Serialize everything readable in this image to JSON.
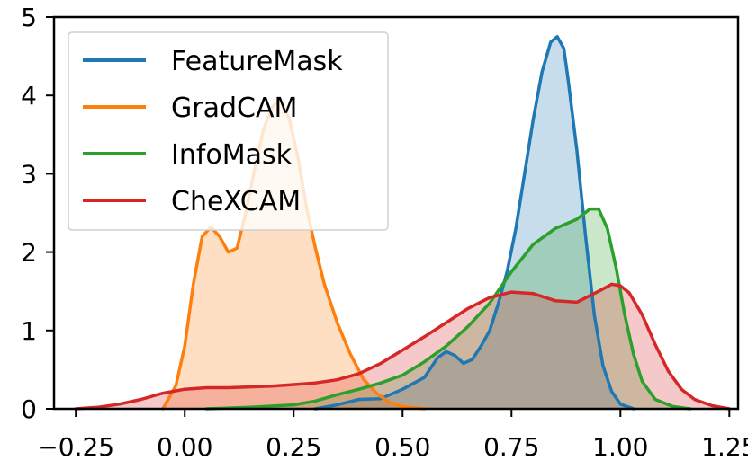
{
  "chart_data": {
    "type": "area",
    "title": "",
    "xlabel": "",
    "ylabel": "",
    "xlim": [
      -0.3,
      1.27
    ],
    "ylim": [
      0,
      5
    ],
    "xticks": [
      -0.25,
      0.0,
      0.25,
      0.5,
      0.75,
      1.0,
      1.25
    ],
    "xtick_labels": [
      "−0.25",
      "0.00",
      "0.25",
      "0.50",
      "0.75",
      "1.00",
      "1.25"
    ],
    "yticks": [
      0,
      1,
      2,
      3,
      4,
      5
    ],
    "ytick_labels": [
      "0",
      "1",
      "2",
      "3",
      "4",
      "5"
    ],
    "grid": false,
    "legend_position": "top-left",
    "series": [
      {
        "name": "FeatureMask",
        "color": "#1f77b4",
        "points": [
          [
            0.3,
            0.0
          ],
          [
            0.35,
            0.05
          ],
          [
            0.4,
            0.12
          ],
          [
            0.45,
            0.13
          ],
          [
            0.5,
            0.25
          ],
          [
            0.55,
            0.4
          ],
          [
            0.58,
            0.65
          ],
          [
            0.6,
            0.73
          ],
          [
            0.62,
            0.68
          ],
          [
            0.64,
            0.58
          ],
          [
            0.66,
            0.63
          ],
          [
            0.68,
            0.8
          ],
          [
            0.7,
            1.0
          ],
          [
            0.72,
            1.35
          ],
          [
            0.74,
            1.75
          ],
          [
            0.76,
            2.3
          ],
          [
            0.78,
            3.0
          ],
          [
            0.8,
            3.7
          ],
          [
            0.82,
            4.3
          ],
          [
            0.84,
            4.68
          ],
          [
            0.855,
            4.75
          ],
          [
            0.87,
            4.6
          ],
          [
            0.88,
            4.2
          ],
          [
            0.9,
            3.3
          ],
          [
            0.92,
            2.2
          ],
          [
            0.94,
            1.2
          ],
          [
            0.96,
            0.55
          ],
          [
            0.98,
            0.22
          ],
          [
            1.0,
            0.06
          ],
          [
            1.03,
            0.0
          ]
        ]
      },
      {
        "name": "GradCAM",
        "color": "#ff7f0e",
        "points": [
          [
            -0.05,
            0.0
          ],
          [
            -0.02,
            0.3
          ],
          [
            0.0,
            0.8
          ],
          [
            0.02,
            1.6
          ],
          [
            0.04,
            2.2
          ],
          [
            0.06,
            2.32
          ],
          [
            0.08,
            2.2
          ],
          [
            0.1,
            2.0
          ],
          [
            0.12,
            2.05
          ],
          [
            0.14,
            2.5
          ],
          [
            0.16,
            3.05
          ],
          [
            0.18,
            3.55
          ],
          [
            0.2,
            3.85
          ],
          [
            0.22,
            3.95
          ],
          [
            0.24,
            3.7
          ],
          [
            0.26,
            3.2
          ],
          [
            0.28,
            2.55
          ],
          [
            0.3,
            2.05
          ],
          [
            0.32,
            1.6
          ],
          [
            0.35,
            1.1
          ],
          [
            0.38,
            0.7
          ],
          [
            0.41,
            0.38
          ],
          [
            0.44,
            0.2
          ],
          [
            0.47,
            0.08
          ],
          [
            0.5,
            0.03
          ],
          [
            0.55,
            0.0
          ]
        ]
      },
      {
        "name": "InfoMask",
        "color": "#2ca02c",
        "points": [
          [
            0.05,
            0.0
          ],
          [
            0.15,
            0.02
          ],
          [
            0.25,
            0.05
          ],
          [
            0.3,
            0.1
          ],
          [
            0.35,
            0.18
          ],
          [
            0.4,
            0.25
          ],
          [
            0.45,
            0.33
          ],
          [
            0.5,
            0.43
          ],
          [
            0.55,
            0.6
          ],
          [
            0.6,
            0.8
          ],
          [
            0.65,
            1.05
          ],
          [
            0.7,
            1.35
          ],
          [
            0.75,
            1.75
          ],
          [
            0.8,
            2.1
          ],
          [
            0.85,
            2.3
          ],
          [
            0.9,
            2.42
          ],
          [
            0.93,
            2.55
          ],
          [
            0.95,
            2.55
          ],
          [
            0.97,
            2.3
          ],
          [
            0.99,
            1.8
          ],
          [
            1.01,
            1.2
          ],
          [
            1.03,
            0.7
          ],
          [
            1.05,
            0.35
          ],
          [
            1.08,
            0.12
          ],
          [
            1.12,
            0.03
          ],
          [
            1.16,
            0.0
          ]
        ]
      },
      {
        "name": "CheXCAM",
        "color": "#d62728",
        "points": [
          [
            -0.25,
            0.0
          ],
          [
            -0.2,
            0.02
          ],
          [
            -0.15,
            0.06
          ],
          [
            -0.1,
            0.12
          ],
          [
            -0.05,
            0.2
          ],
          [
            0.0,
            0.25
          ],
          [
            0.05,
            0.27
          ],
          [
            0.1,
            0.27
          ],
          [
            0.15,
            0.28
          ],
          [
            0.2,
            0.29
          ],
          [
            0.25,
            0.31
          ],
          [
            0.3,
            0.33
          ],
          [
            0.35,
            0.37
          ],
          [
            0.4,
            0.45
          ],
          [
            0.45,
            0.58
          ],
          [
            0.5,
            0.75
          ],
          [
            0.55,
            0.92
          ],
          [
            0.6,
            1.1
          ],
          [
            0.65,
            1.28
          ],
          [
            0.7,
            1.42
          ],
          [
            0.75,
            1.49
          ],
          [
            0.8,
            1.47
          ],
          [
            0.85,
            1.38
          ],
          [
            0.9,
            1.36
          ],
          [
            0.95,
            1.5
          ],
          [
            0.98,
            1.59
          ],
          [
            1.0,
            1.57
          ],
          [
            1.02,
            1.48
          ],
          [
            1.05,
            1.2
          ],
          [
            1.08,
            0.82
          ],
          [
            1.11,
            0.48
          ],
          [
            1.14,
            0.25
          ],
          [
            1.17,
            0.12
          ],
          [
            1.21,
            0.04
          ],
          [
            1.25,
            0.0
          ]
        ]
      }
    ]
  }
}
